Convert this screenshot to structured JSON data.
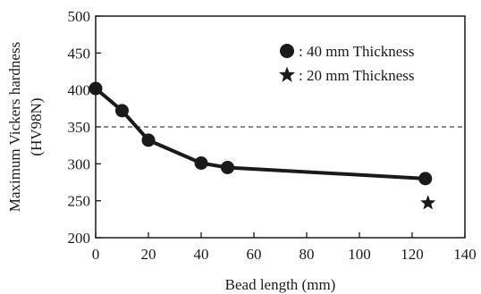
{
  "chart_data": {
    "type": "line",
    "xlabel": "Bead length (mm)",
    "ylabel_line1": "Maximum Vickers hardness",
    "ylabel_line2": "(HV98N)",
    "xlim": [
      0,
      140
    ],
    "ylim": [
      200,
      500
    ],
    "x_ticks": [
      0,
      20,
      40,
      60,
      80,
      100,
      120,
      140
    ],
    "y_ticks": [
      200,
      250,
      300,
      350,
      400,
      450,
      500
    ],
    "reference_line": {
      "y": 350,
      "style": "dashed"
    },
    "grid": false,
    "legend_position": "top-right",
    "series": [
      {
        "name": ": 40 mm Thickness",
        "marker": "circle",
        "connected": true,
        "x": [
          0,
          10,
          20,
          40,
          50,
          125
        ],
        "y": [
          402,
          372,
          332,
          301,
          295,
          280
        ]
      },
      {
        "name": ": 20 mm Thickness",
        "marker": "star",
        "connected": false,
        "x": [
          126
        ],
        "y": [
          247
        ]
      }
    ],
    "colors": {
      "ink": "#1a1a1a"
    }
  }
}
